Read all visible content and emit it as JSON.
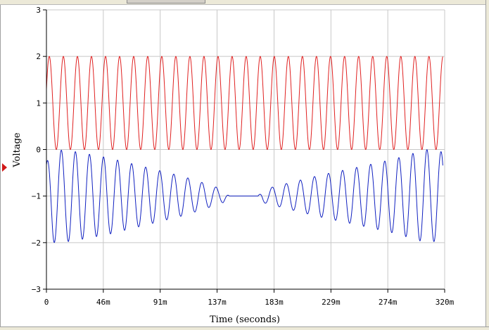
{
  "chart_data": {
    "type": "line",
    "title": "",
    "xlabel": "Time (seconds)",
    "ylabel": "Voltage",
    "xlim": [
      0,
      0.32
    ],
    "ylim": [
      -3,
      3
    ],
    "grid": true,
    "legend": "none",
    "x_ticks": [
      {
        "value": 0,
        "label": "0"
      },
      {
        "value": 0.0457,
        "label": "46m"
      },
      {
        "value": 0.0914,
        "label": "91m"
      },
      {
        "value": 0.1371,
        "label": "137m"
      },
      {
        "value": 0.1829,
        "label": "183m"
      },
      {
        "value": 0.2286,
        "label": "229m"
      },
      {
        "value": 0.2743,
        "label": "274m"
      },
      {
        "value": 0.32,
        "label": "320m"
      }
    ],
    "y_ticks": [
      {
        "value": 3,
        "label": "3"
      },
      {
        "value": 2,
        "label": "2"
      },
      {
        "value": 1,
        "label": "1"
      },
      {
        "value": 0,
        "label": "0"
      },
      {
        "value": -1,
        "label": "−1"
      },
      {
        "value": -2,
        "label": "−2"
      },
      {
        "value": -3,
        "label": "−3"
      }
    ],
    "series": [
      {
        "color": "#e02020",
        "kind": "sinusoid",
        "offset_v": 1,
        "amplitude_v": 1,
        "frequency_hz": 88.5,
        "t_range": [
          0,
          0.3185
        ]
      },
      {
        "color": "#1020c0",
        "kind": "modulated-sinusoid",
        "offset_v": -1,
        "carrier_hz": 88.5,
        "envelope_points": [
          [
            0.0,
            0.72
          ],
          [
            0.005,
            1.0
          ],
          [
            0.02,
            0.97
          ],
          [
            0.05,
            0.82
          ],
          [
            0.08,
            0.62
          ],
          [
            0.11,
            0.42
          ],
          [
            0.13,
            0.25
          ],
          [
            0.142,
            0.14
          ],
          [
            0.147,
            0.0
          ],
          [
            0.17,
            0.0
          ],
          [
            0.174,
            0.14
          ],
          [
            0.19,
            0.25
          ],
          [
            0.22,
            0.45
          ],
          [
            0.25,
            0.62
          ],
          [
            0.28,
            0.8
          ],
          [
            0.305,
            1.0
          ],
          [
            0.318,
            0.95
          ]
        ],
        "t_range": [
          0,
          0.3185
        ]
      }
    ]
  },
  "colors": {
    "background": "#ffffff",
    "grid": "#c8c8c8",
    "axis": "#000000",
    "marker": "#d01818"
  }
}
